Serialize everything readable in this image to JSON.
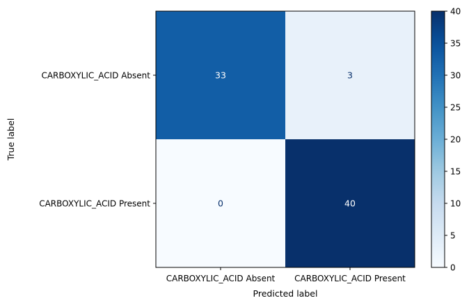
{
  "chart_data": {
    "type": "heatmap",
    "title": "",
    "xlabel": "Predicted label",
    "ylabel": "True label",
    "x_categories": [
      "CARBOXYLIC_ACID Absent",
      "CARBOXYLIC_ACID Present"
    ],
    "y_categories": [
      "CARBOXYLIC_ACID Absent",
      "CARBOXYLIC_ACID Present"
    ],
    "values": [
      [
        33,
        3
      ],
      [
        0,
        40
      ]
    ],
    "colormap": "Blues",
    "colorbar": {
      "min": 0,
      "max": 40,
      "ticks": [
        0,
        5,
        10,
        15,
        20,
        25,
        30,
        35,
        40
      ]
    },
    "grid": false
  }
}
